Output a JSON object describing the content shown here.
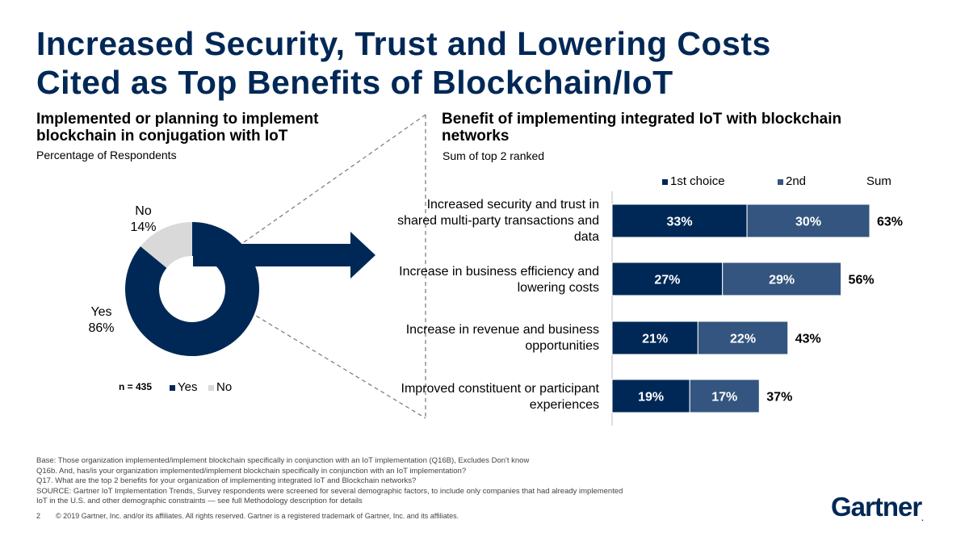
{
  "title": {
    "line1": "Increased Security, Trust and Lowering Costs",
    "line2": "Cited as Top Benefits of Blockchain/IoT"
  },
  "left_panel": {
    "heading": "Implemented or planning to implement blockchain in conjugation with IoT",
    "subtitle": "Percentage of Respondents",
    "n_label": "n = 435",
    "legend": [
      "Yes",
      "No"
    ]
  },
  "right_panel": {
    "heading": "Benefit of implementing integrated IoT with blockchain networks",
    "subtitle": "Sum of top 2 ranked",
    "legend": [
      "1st choice",
      "2nd",
      "Sum"
    ]
  },
  "chart_data": [
    {
      "type": "pie",
      "subtype": "donut",
      "title": "Implemented or planning to implement blockchain in conjugation with IoT",
      "categories": [
        "Yes",
        "No"
      ],
      "values": [
        86,
        14
      ],
      "labels": [
        "86%",
        "14%"
      ],
      "colors": [
        "#002856",
        "#d9d9d9"
      ]
    },
    {
      "type": "bar",
      "orientation": "horizontal",
      "stacked": true,
      "title": "Benefit of implementing integrated IoT with blockchain networks",
      "categories": [
        "Increased security and trust in shared multi-party transactions and data",
        "Increase in business efficiency and lowering costs",
        "Increase in revenue and business opportunities",
        "Improved constituent or participant experiences"
      ],
      "series": [
        {
          "name": "1st choice",
          "values": [
            33,
            27,
            21,
            19
          ],
          "labels": [
            "33%",
            "27%",
            "21%",
            "19%"
          ],
          "color": "#002856"
        },
        {
          "name": "2nd",
          "values": [
            30,
            29,
            22,
            17
          ],
          "labels": [
            "30%",
            "29%",
            "22%",
            "17%"
          ],
          "color": "#34557f"
        }
      ],
      "sum_values": [
        63,
        56,
        43,
        37
      ],
      "sum_labels": [
        "63%",
        "56%",
        "43%",
        "37%"
      ],
      "xlim": [
        0,
        70
      ]
    }
  ],
  "footnotes": [
    "Base: Those organization implemented/implement blockchain specifically in conjunction with an IoT implementation (Q16B), Excludes Don't know",
    "Q16b. And, has/is your organization implemented/implement blockchain specifically in conjunction with an IoT implementation?",
    "Q17. What are the top 2 benefits for your organization of implementing integrated IoT and Blockchain networks?",
    "SOURCE: Gartner IoT Implementation Trends, Survey respondents were screened for several demographic factors, to include only companies that had already implemented",
    "IoT in the U.S. and other demographic constraints — see full Methodology description for details"
  ],
  "page_number": "2",
  "copyright": "© 2019 Gartner, Inc. and/or its affiliates. All rights reserved. Gartner is a registered trademark of Gartner, Inc. and its affiliates.",
  "logo": "Gartner",
  "colors": {
    "navy": "#002856",
    "mid_blue": "#34557f",
    "grey": "#d9d9d9",
    "dash": "#777777"
  }
}
